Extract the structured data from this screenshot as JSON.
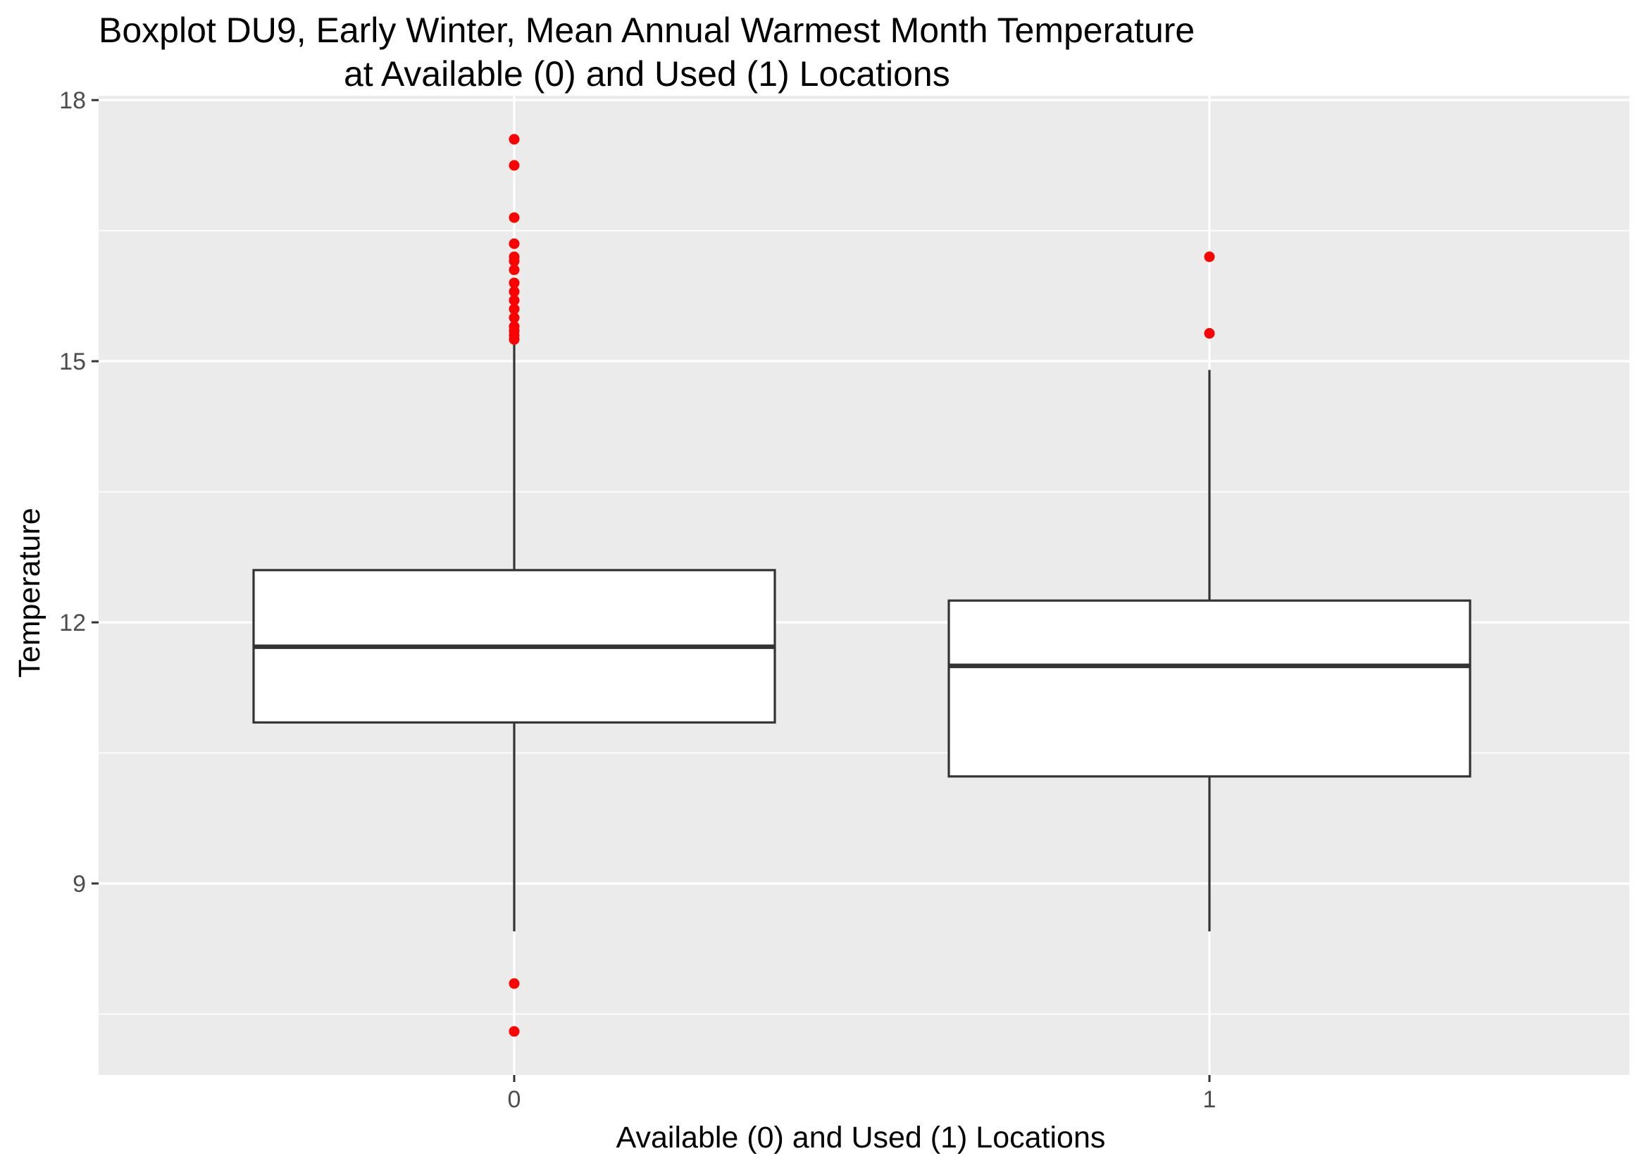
{
  "chart_data": {
    "type": "boxplot",
    "title_lines": [
      "Boxplot DU9, Early Winter, Mean Annual Warmest Month Temperature",
      "at Available (0) and Used (1) Locations"
    ],
    "xlabel": "Available (0) and Used (1) Locations",
    "ylabel": "Temperature",
    "categories": [
      "0",
      "1"
    ],
    "y_ticks": [
      9,
      12,
      15,
      18
    ],
    "ylim": [
      6.8,
      18.05
    ],
    "grid": true,
    "legend": "none",
    "boxes": [
      {
        "category": "0",
        "whisker_low": 8.45,
        "q1": 10.85,
        "median": 11.72,
        "q3": 12.6,
        "whisker_high": 15.2,
        "outliers": [
          7.3,
          7.85,
          15.25,
          15.3,
          15.35,
          15.4,
          15.5,
          15.6,
          15.7,
          15.8,
          15.9,
          16.05,
          16.15,
          16.2,
          16.35,
          16.65,
          17.25,
          17.55
        ]
      },
      {
        "category": "1",
        "whisker_low": 8.45,
        "q1": 10.23,
        "median": 11.5,
        "q3": 12.25,
        "whisker_high": 14.9,
        "outliers": [
          15.32,
          16.2
        ]
      }
    ],
    "colors": {
      "panel_background": "#ebebeb",
      "grid": "#ffffff",
      "box_fill": "#ffffff",
      "box_line": "#333333",
      "outlier": "#ff0000"
    }
  }
}
